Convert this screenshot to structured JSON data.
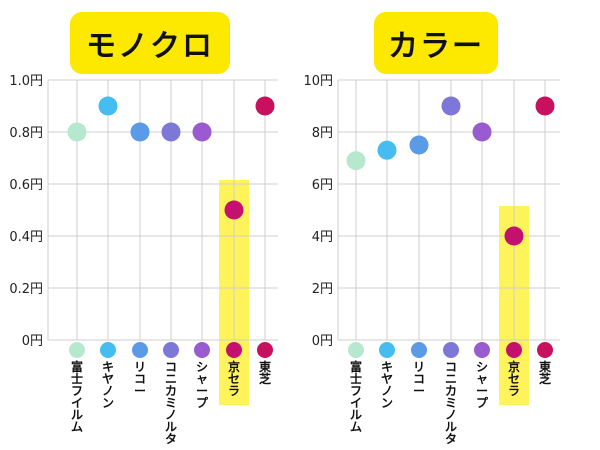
{
  "chart_data": [
    {
      "type": "scatter",
      "title": "モノクロ",
      "categories": [
        "富士フイルム",
        "キヤノン",
        "リコー",
        "コニカミノルタ",
        "シャープ",
        "京セラ",
        "東芝"
      ],
      "values": [
        0.8,
        0.9,
        0.8,
        0.8,
        0.8,
        0.5,
        0.9
      ],
      "yticks": [
        "0円",
        "0.2円",
        "0.4円",
        "0.6円",
        "0.8円",
        "1.0円"
      ],
      "ylim": [
        0,
        1.0
      ],
      "highlight": "京セラ",
      "grid": true
    },
    {
      "type": "scatter",
      "title": "カラー",
      "categories": [
        "富士フイルム",
        "キヤノン",
        "リコー",
        "コニカミノルタ",
        "シャープ",
        "京セラ",
        "東芝"
      ],
      "values": [
        6.9,
        7.3,
        7.5,
        9,
        8,
        4,
        9
      ],
      "yticks": [
        "0円",
        "2円",
        "4円",
        "6円",
        "8円",
        "10円"
      ],
      "ylim": [
        0,
        10
      ],
      "highlight": "京セラ",
      "grid": true
    }
  ],
  "colors": [
    "#b5e8cf",
    "#45bdf0",
    "#5b9ae6",
    "#7d78d8",
    "#9b5bd0",
    "#c4116f",
    "#c8105e"
  ],
  "highlight_color": "#fff35c"
}
